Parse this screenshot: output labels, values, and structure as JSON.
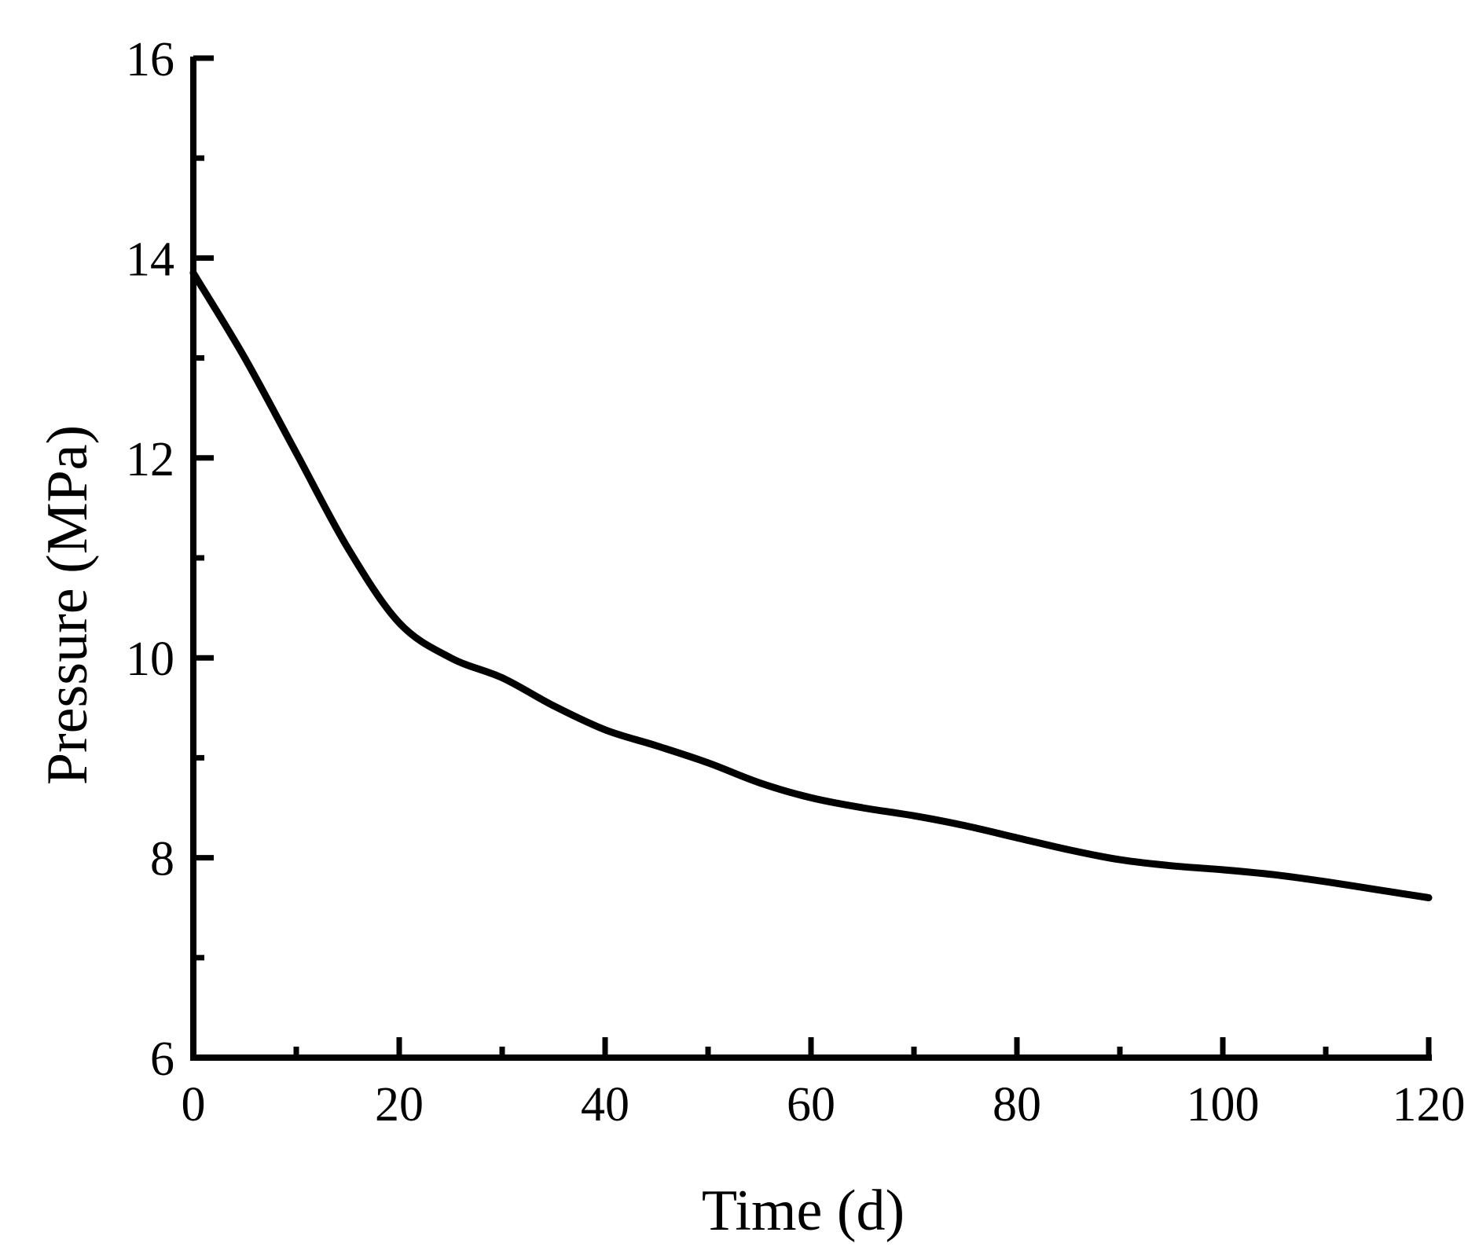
{
  "chart_data": {
    "type": "line",
    "title": "",
    "xlabel": "Time (d)",
    "ylabel": "Pressure (MPa)",
    "xlim": [
      0,
      120
    ],
    "ylim": [
      6,
      16
    ],
    "x_ticks": [
      0,
      20,
      40,
      60,
      80,
      100,
      120
    ],
    "x_tick_labels": [
      "0",
      "20",
      "40",
      "60",
      "80",
      "100",
      "120"
    ],
    "x_minor_ticks": [
      10,
      30,
      50,
      70,
      90,
      110
    ],
    "y_ticks": [
      6,
      8,
      10,
      12,
      14,
      16
    ],
    "y_tick_labels": [
      "6",
      "8",
      "10",
      "12",
      "14",
      "16"
    ],
    "y_minor_ticks": [
      7,
      9,
      11,
      13,
      15
    ],
    "grid": false,
    "legend": "none",
    "line_color": "#000000",
    "series": [
      {
        "x": [
          0,
          5,
          10,
          15,
          20,
          25,
          30,
          35,
          40,
          45,
          50,
          55,
          60,
          65,
          70,
          75,
          80,
          85,
          90,
          95,
          100,
          105,
          110,
          115,
          120
        ],
        "y": [
          13.85,
          13.0,
          12.05,
          11.1,
          10.35,
          10.0,
          9.8,
          9.52,
          9.28,
          9.12,
          8.95,
          8.75,
          8.6,
          8.5,
          8.42,
          8.32,
          8.2,
          8.08,
          7.98,
          7.92,
          7.88,
          7.83,
          7.76,
          7.68,
          7.6
        ]
      }
    ]
  }
}
